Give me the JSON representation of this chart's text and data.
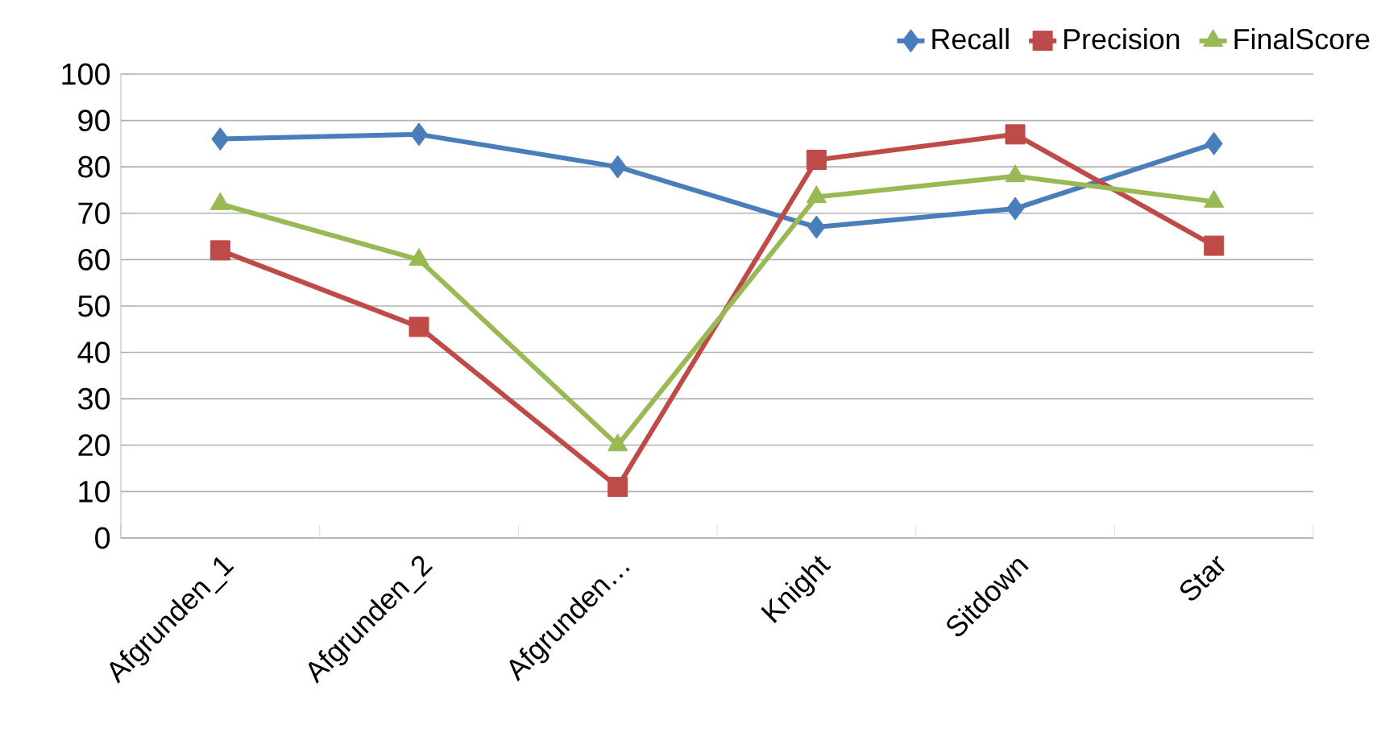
{
  "chart_data": {
    "type": "line",
    "categories": [
      "Afgrunden_1",
      "Afgrunden_2",
      "Afgrunden…",
      "Knight",
      "Sitdown",
      "Star"
    ],
    "series": [
      {
        "name": "Recall",
        "color": "#4a7ebb",
        "marker": "diamond",
        "values": [
          86,
          87,
          80,
          67,
          71,
          85
        ]
      },
      {
        "name": "Precision",
        "color": "#be4b48",
        "marker": "square",
        "values": [
          62,
          45.5,
          11,
          81.5,
          87,
          63
        ]
      },
      {
        "name": "FinalScore",
        "color": "#98b954",
        "marker": "triangle",
        "values": [
          72,
          60,
          20,
          73.5,
          78,
          72.5
        ]
      }
    ],
    "ylim": [
      0,
      100
    ],
    "yticks": [
      0,
      10,
      20,
      30,
      40,
      50,
      60,
      70,
      80,
      90,
      100
    ],
    "grid": "y",
    "legend": "top right",
    "line_style": "solid"
  }
}
